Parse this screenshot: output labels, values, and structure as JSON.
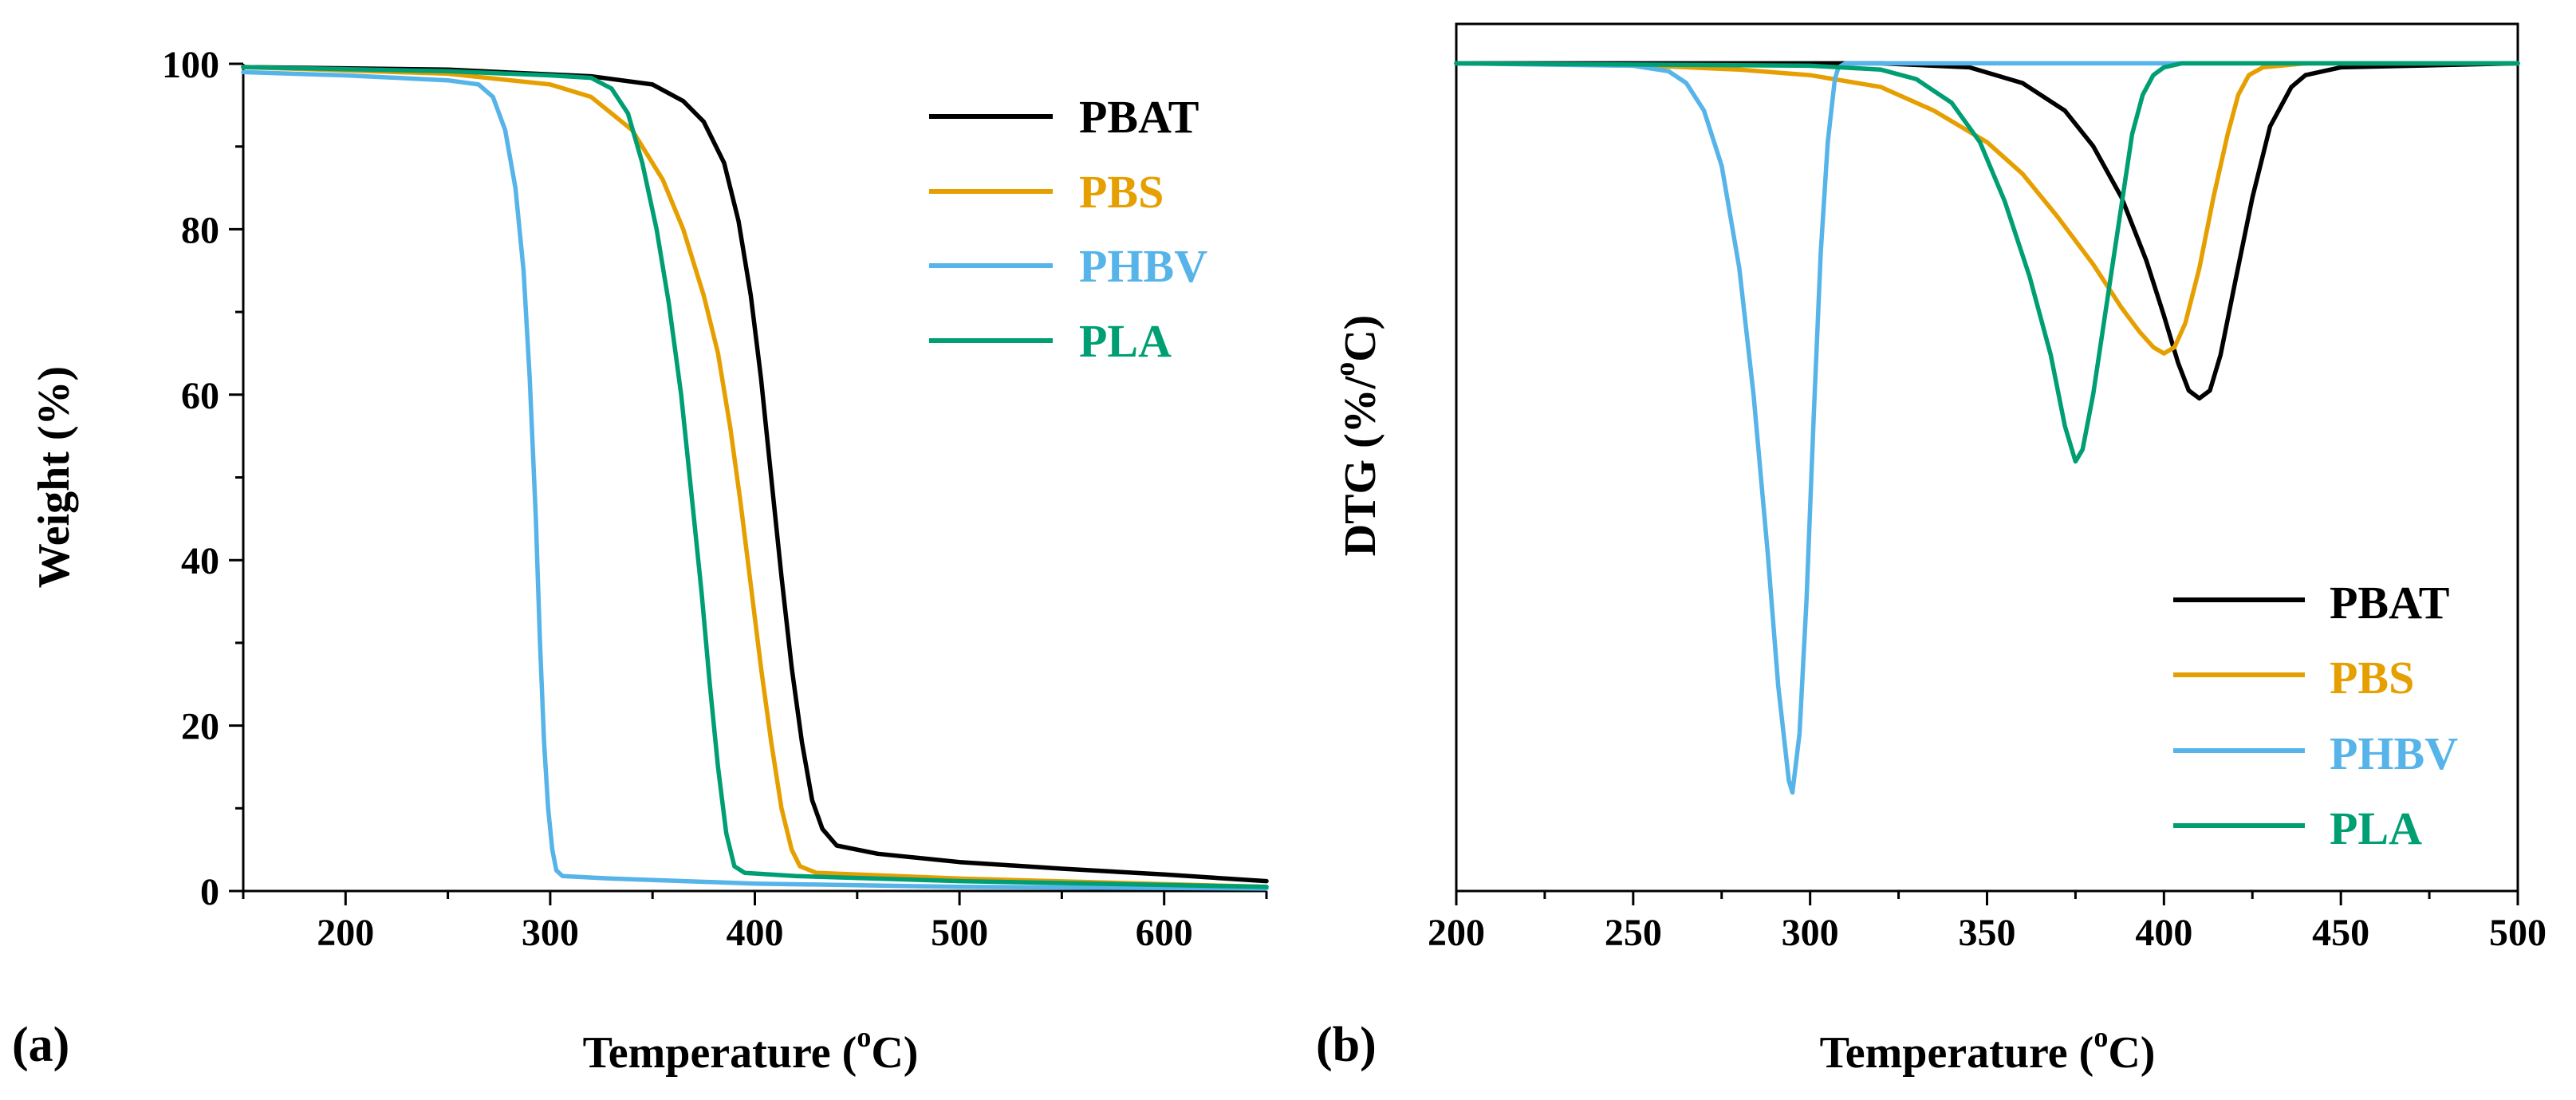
{
  "chart_data": [
    {
      "type": "line",
      "panel_label": "(a)",
      "xlabel_prefix": "Temperature (",
      "xlabel_sup": "o",
      "xlabel_suffix": "C)",
      "ylabel": "Weight (%)",
      "xlim": [
        150,
        650
      ],
      "ylim": [
        0,
        100
      ],
      "xticks": [
        200,
        300,
        400,
        500,
        600
      ],
      "yticks": [
        0,
        20,
        40,
        60,
        80,
        100
      ],
      "legend_position": "top-right",
      "series": [
        {
          "name": "PBAT",
          "color": "#000000",
          "points": [
            [
              150,
              99.6
            ],
            [
              250,
              99.3
            ],
            [
              320,
              98.5
            ],
            [
              350,
              97.5
            ],
            [
              365,
              95.5
            ],
            [
              375,
              93
            ],
            [
              385,
              88
            ],
            [
              392,
              81
            ],
            [
              398,
              72
            ],
            [
              403,
              62
            ],
            [
              408,
              50
            ],
            [
              413,
              38
            ],
            [
              418,
              27
            ],
            [
              423,
              18
            ],
            [
              428,
              11
            ],
            [
              433,
              7.5
            ],
            [
              440,
              5.5
            ],
            [
              460,
              4.5
            ],
            [
              500,
              3.5
            ],
            [
              550,
              2.7
            ],
            [
              600,
              2
            ],
            [
              650,
              1.2
            ]
          ]
        },
        {
          "name": "PBS",
          "color": "#E69F00",
          "points": [
            [
              150,
              99.6
            ],
            [
              250,
              98.8
            ],
            [
              300,
              97.5
            ],
            [
              320,
              96
            ],
            [
              340,
              92
            ],
            [
              355,
              86
            ],
            [
              365,
              80
            ],
            [
              375,
              72
            ],
            [
              382,
              65
            ],
            [
              388,
              56
            ],
            [
              393,
              47
            ],
            [
              398,
              37
            ],
            [
              403,
              27
            ],
            [
              408,
              18
            ],
            [
              413,
              10
            ],
            [
              418,
              5
            ],
            [
              422,
              3
            ],
            [
              430,
              2.2
            ],
            [
              500,
              1.5
            ],
            [
              650,
              0.5
            ]
          ]
        },
        {
          "name": "PHBV",
          "color": "#56B4E9",
          "points": [
            [
              150,
              99
            ],
            [
              200,
              98.6
            ],
            [
              250,
              98
            ],
            [
              265,
              97.5
            ],
            [
              272,
              96
            ],
            [
              278,
              92
            ],
            [
              283,
              85
            ],
            [
              287,
              75
            ],
            [
              290,
              62
            ],
            [
              293,
              45
            ],
            [
              295,
              30
            ],
            [
              297,
              18
            ],
            [
              299,
              10
            ],
            [
              301,
              5
            ],
            [
              303,
              2.5
            ],
            [
              306,
              1.8
            ],
            [
              330,
              1.5
            ],
            [
              400,
              0.9
            ],
            [
              500,
              0.5
            ],
            [
              650,
              0.3
            ]
          ]
        },
        {
          "name": "PLA",
          "color": "#009E73",
          "points": [
            [
              150,
              99.6
            ],
            [
              250,
              99.1
            ],
            [
              300,
              98.6
            ],
            [
              320,
              98.3
            ],
            [
              330,
              97
            ],
            [
              338,
              94
            ],
            [
              345,
              88
            ],
            [
              352,
              80
            ],
            [
              358,
              71
            ],
            [
              364,
              60
            ],
            [
              369,
              48
            ],
            [
              374,
              36
            ],
            [
              378,
              25
            ],
            [
              382,
              15
            ],
            [
              386,
              7
            ],
            [
              390,
              3
            ],
            [
              395,
              2.2
            ],
            [
              420,
              1.8
            ],
            [
              500,
              1.2
            ],
            [
              650,
              0.5
            ]
          ]
        }
      ]
    },
    {
      "type": "line",
      "panel_label": "(b)",
      "xlabel_prefix": "Temperature (",
      "xlabel_sup": "o",
      "xlabel_suffix": "C)",
      "ylabel_prefix": "DTG (%/",
      "ylabel_sup": "o",
      "ylabel_suffix": "C)",
      "xlim": [
        200,
        500
      ],
      "ylim": [
        -105,
        5
      ],
      "xticks": [
        200,
        250,
        300,
        350,
        400,
        450,
        500
      ],
      "legend_position": "bottom-right",
      "series": [
        {
          "name": "PBAT",
          "color": "#000000",
          "points": [
            [
              200,
              0
            ],
            [
              320,
              0
            ],
            [
              345,
              -0.5
            ],
            [
              360,
              -2.5
            ],
            [
              372,
              -6
            ],
            [
              380,
              -10.5
            ],
            [
              388,
              -17
            ],
            [
              395,
              -25
            ],
            [
              400,
              -32
            ],
            [
              404,
              -38
            ],
            [
              407,
              -41.5
            ],
            [
              410,
              -42.5
            ],
            [
              413,
              -41.5
            ],
            [
              416,
              -37
            ],
            [
              420,
              -28
            ],
            [
              425,
              -17
            ],
            [
              430,
              -8
            ],
            [
              436,
              -3
            ],
            [
              440,
              -1.5
            ],
            [
              450,
              -0.5
            ],
            [
              500,
              0
            ]
          ]
        },
        {
          "name": "PBS",
          "color": "#E69F00",
          "points": [
            [
              200,
              0
            ],
            [
              250,
              -0.2
            ],
            [
              280,
              -0.8
            ],
            [
              300,
              -1.5
            ],
            [
              320,
              -3
            ],
            [
              335,
              -6
            ],
            [
              350,
              -10
            ],
            [
              360,
              -14
            ],
            [
              370,
              -19.5
            ],
            [
              380,
              -25.5
            ],
            [
              388,
              -31
            ],
            [
              393,
              -34
            ],
            [
              397,
              -36
            ],
            [
              400,
              -36.8
            ],
            [
              403,
              -36
            ],
            [
              406,
              -33
            ],
            [
              410,
              -26
            ],
            [
              414,
              -17
            ],
            [
              418,
              -9
            ],
            [
              421,
              -4
            ],
            [
              424,
              -1.5
            ],
            [
              428,
              -0.5
            ],
            [
              440,
              0
            ],
            [
              500,
              0
            ]
          ]
        },
        {
          "name": "PHBV",
          "color": "#56B4E9",
          "points": [
            [
              200,
              0
            ],
            [
              250,
              -0.3
            ],
            [
              260,
              -1
            ],
            [
              265,
              -2.5
            ],
            [
              270,
              -6
            ],
            [
              275,
              -13
            ],
            [
              280,
              -26
            ],
            [
              284,
              -42
            ],
            [
              288,
              -62
            ],
            [
              291,
              -79
            ],
            [
              294,
              -91
            ],
            [
              295,
              -92.5
            ],
            [
              297,
              -85
            ],
            [
              299,
              -68
            ],
            [
              301,
              -45
            ],
            [
              303,
              -24
            ],
            [
              305,
              -10
            ],
            [
              307,
              -2
            ],
            [
              308,
              -0.5
            ],
            [
              310,
              0
            ],
            [
              500,
              0
            ]
          ]
        },
        {
          "name": "PLA",
          "color": "#009E73",
          "points": [
            [
              200,
              0
            ],
            [
              300,
              -0.3
            ],
            [
              320,
              -0.8
            ],
            [
              330,
              -2
            ],
            [
              340,
              -5
            ],
            [
              348,
              -10
            ],
            [
              355,
              -17.5
            ],
            [
              362,
              -27
            ],
            [
              368,
              -37
            ],
            [
              372,
              -46
            ],
            [
              375,
              -50.5
            ],
            [
              377,
              -49
            ],
            [
              380,
              -42
            ],
            [
              384,
              -30
            ],
            [
              388,
              -18
            ],
            [
              391,
              -9
            ],
            [
              394,
              -4
            ],
            [
              397,
              -1.5
            ],
            [
              400,
              -0.5
            ],
            [
              405,
              0
            ],
            [
              500,
              0
            ]
          ]
        }
      ]
    }
  ]
}
